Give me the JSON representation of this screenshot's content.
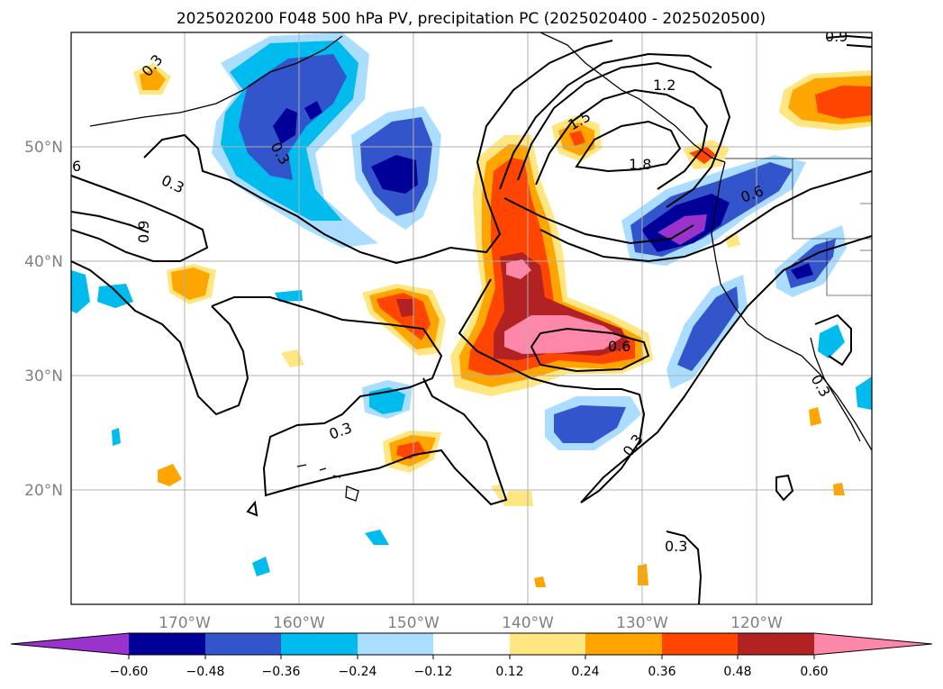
{
  "title": "2025020200 F048 500 hPa PV, precipitation PC (2025020400 - 2025020500)",
  "map": {
    "lon_labels": [
      "170°W",
      "160°W",
      "150°W",
      "140°W",
      "130°W",
      "120°W"
    ],
    "lat_labels": [
      "50°N",
      "40°N",
      "30°N",
      "20°N"
    ],
    "contour_labels": [
      "0.3",
      "0.6",
      "1.2",
      "1.5",
      "1.8",
      "0.9",
      "6"
    ]
  },
  "colorbar": {
    "ticks": [
      "−0.60",
      "−0.48",
      "−0.36",
      "−0.24",
      "−0.12",
      "0.12",
      "0.24",
      "0.36",
      "0.48",
      "0.60"
    ],
    "colors": {
      "neg_extend": "#9933cc",
      "neg_60": "#000099",
      "neg_48": "#3355cc",
      "neg_36": "#00bbee",
      "neg_24": "#aaddff",
      "neutral": "#ffffff",
      "pos_12": "#ffe680",
      "pos_24": "#ffa500",
      "pos_36": "#ff4500",
      "pos_48": "#b22222",
      "pos_extend": "#ff88aa"
    }
  }
}
